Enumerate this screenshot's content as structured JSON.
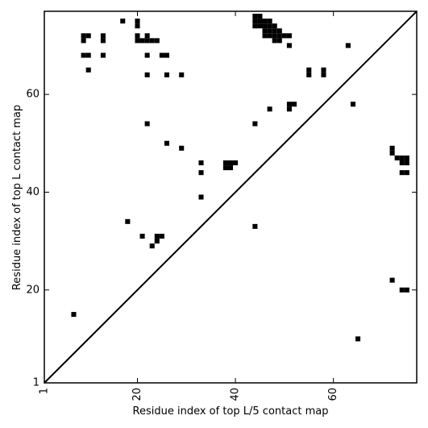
{
  "chart_data": {
    "type": "heatmap",
    "title": "",
    "xlabel": "Residue index of top L/5 contact map",
    "ylabel": "Residue index of top L contact map",
    "xlim": [
      1,
      77
    ],
    "ylim": [
      1,
      77
    ],
    "x_ticks": [
      1,
      20,
      40,
      60
    ],
    "y_ticks": [
      1,
      20,
      40,
      60
    ],
    "x_tick_labels": [
      "1",
      "20",
      "40",
      "60"
    ],
    "y_tick_labels": [
      "1",
      "20",
      "40",
      "60"
    ],
    "x_tick_rotation": 270,
    "diagonal_line": true,
    "cell_color": "#000000",
    "upper_cells": [
      [
        17,
        75
      ],
      [
        20,
        75
      ],
      [
        20,
        74
      ],
      [
        20,
        72
      ],
      [
        20,
        71
      ],
      [
        9,
        72
      ],
      [
        10,
        72
      ],
      [
        9,
        71
      ],
      [
        13,
        72
      ],
      [
        13,
        71
      ],
      [
        21,
        71
      ],
      [
        22,
        71
      ],
      [
        23,
        71
      ],
      [
        24,
        71
      ],
      [
        22,
        72
      ],
      [
        9,
        68
      ],
      [
        10,
        68
      ],
      [
        13,
        68
      ],
      [
        22,
        68
      ],
      [
        25,
        68
      ],
      [
        26,
        68
      ],
      [
        10,
        65
      ],
      [
        22,
        64
      ],
      [
        26,
        64
      ],
      [
        29,
        64
      ],
      [
        44,
        76
      ],
      [
        45,
        76
      ],
      [
        44,
        75
      ],
      [
        45,
        75
      ],
      [
        46,
        75
      ],
      [
        47,
        75
      ],
      [
        44,
        74
      ],
      [
        45,
        74
      ],
      [
        46,
        74
      ],
      [
        47,
        74
      ],
      [
        48,
        74
      ],
      [
        46,
        73
      ],
      [
        47,
        73
      ],
      [
        48,
        73
      ],
      [
        49,
        73
      ],
      [
        46,
        72
      ],
      [
        47,
        72
      ],
      [
        48,
        72
      ],
      [
        49,
        72
      ],
      [
        50,
        72
      ],
      [
        51,
        72
      ],
      [
        48,
        71
      ],
      [
        49,
        71
      ],
      [
        51,
        70
      ],
      [
        63,
        70
      ],
      [
        55,
        65
      ],
      [
        58,
        65
      ],
      [
        55,
        64
      ],
      [
        58,
        64
      ],
      [
        51,
        58
      ],
      [
        52,
        58
      ],
      [
        64,
        58
      ],
      [
        47,
        57
      ],
      [
        51,
        57
      ],
      [
        22,
        54
      ],
      [
        44,
        54
      ],
      [
        26,
        50
      ],
      [
        29,
        49
      ],
      [
        33,
        46
      ],
      [
        38,
        46
      ],
      [
        39,
        46
      ],
      [
        40,
        46
      ],
      [
        38,
        45
      ],
      [
        39,
        45
      ],
      [
        33,
        44
      ],
      [
        33,
        39
      ]
    ],
    "lower_cells": [
      [
        18,
        34
      ],
      [
        44,
        33
      ],
      [
        21,
        31
      ],
      [
        24,
        31
      ],
      [
        25,
        31
      ],
      [
        24,
        30
      ],
      [
        23,
        29
      ],
      [
        72,
        49
      ],
      [
        72,
        48
      ],
      [
        73,
        47
      ],
      [
        74,
        47
      ],
      [
        75,
        47
      ],
      [
        74,
        46
      ],
      [
        75,
        46
      ],
      [
        74,
        44
      ],
      [
        75,
        44
      ],
      [
        72,
        22
      ],
      [
        74,
        20
      ],
      [
        75,
        20
      ],
      [
        7,
        15
      ],
      [
        65,
        10
      ]
    ]
  }
}
